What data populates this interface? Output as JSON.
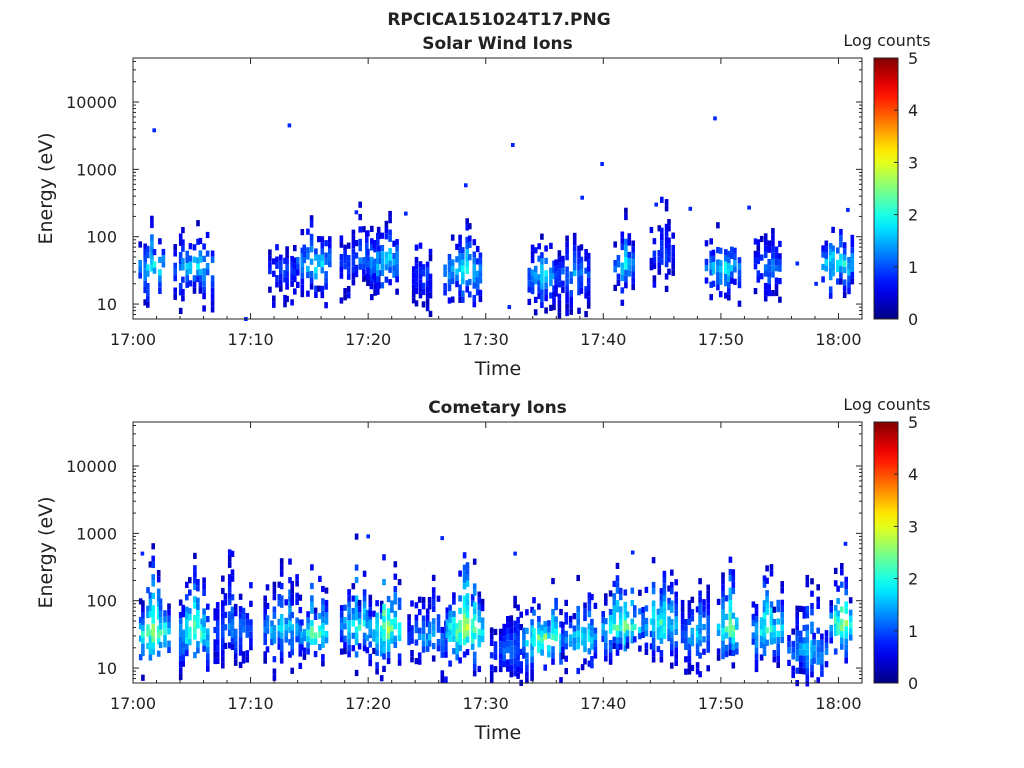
{
  "figure": {
    "title": "RPCICA151024T17.PNG"
  },
  "chart_data": [
    {
      "type": "heatmap",
      "title": "Solar Wind Ions",
      "xlabel": "Time",
      "ylabel": "Energy (eV)",
      "xlim": [
        "17:00",
        "18:02"
      ],
      "ylim": [
        6,
        45000
      ],
      "y_scale": "log",
      "x_ticks": [
        "17:00",
        "17:10",
        "17:20",
        "17:30",
        "17:40",
        "17:50",
        "18:00"
      ],
      "y_ticks": [
        "10",
        "100",
        "1000",
        "10000"
      ],
      "colorbar": {
        "label": "Log counts",
        "range": [
          0,
          5
        ],
        "ticks": [
          "0",
          "1",
          "2",
          "3",
          "4",
          "5"
        ],
        "colormap": "jet"
      },
      "bursts": [
        {
          "t": 1.6,
          "e": 40,
          "peak": 2.2
        },
        {
          "t": 5.2,
          "e": 40,
          "peak": 1.9
        },
        {
          "t": 12.7,
          "e": 35,
          "peak": 1.2
        },
        {
          "t": 15.4,
          "e": 45,
          "peak": 2.0
        },
        {
          "t": 19.3,
          "e": 50,
          "peak": 1.4
        },
        {
          "t": 21.2,
          "e": 50,
          "peak": 2.0
        },
        {
          "t": 24.6,
          "e": 30,
          "peak": 1.1
        },
        {
          "t": 28.1,
          "e": 35,
          "peak": 2.1
        },
        {
          "t": 34.7,
          "e": 30,
          "peak": 1.9
        },
        {
          "t": 37.4,
          "e": 30,
          "peak": 1.5
        },
        {
          "t": 41.7,
          "e": 40,
          "peak": 1.9
        },
        {
          "t": 45.0,
          "e": 60,
          "peak": 1.1
        },
        {
          "t": 50.2,
          "e": 40,
          "peak": 2.0
        },
        {
          "t": 54.0,
          "e": 40,
          "peak": 1.4
        },
        {
          "t": 59.9,
          "e": 45,
          "peak": 2.3
        }
      ],
      "sparse_points": [
        {
          "t": 1.8,
          "e": 3800,
          "v": 0.8
        },
        {
          "t": 13.3,
          "e": 4500,
          "v": 0.8
        },
        {
          "t": 32.3,
          "e": 2300,
          "v": 0.8
        },
        {
          "t": 39.9,
          "e": 1200,
          "v": 0.8
        },
        {
          "t": 49.5,
          "e": 5700,
          "v": 0.8
        },
        {
          "t": 28.3,
          "e": 580,
          "v": 0.8
        },
        {
          "t": 38.2,
          "e": 380,
          "v": 0.8
        },
        {
          "t": 19.0,
          "e": 230,
          "v": 0.8
        },
        {
          "t": 23.2,
          "e": 220,
          "v": 0.8
        },
        {
          "t": 44.5,
          "e": 300,
          "v": 0.8
        },
        {
          "t": 47.4,
          "e": 260,
          "v": 0.8
        },
        {
          "t": 52.4,
          "e": 270,
          "v": 0.8
        },
        {
          "t": 60.8,
          "e": 250,
          "v": 0.8
        },
        {
          "t": 9.6,
          "e": 6,
          "v": 0.8
        },
        {
          "t": 32.0,
          "e": 9,
          "v": 0.8
        },
        {
          "t": 56.5,
          "e": 40,
          "v": 0.8
        },
        {
          "t": 58.1,
          "e": 20,
          "v": 0.8
        }
      ]
    },
    {
      "type": "heatmap",
      "title": "Cometary Ions",
      "xlabel": "Time",
      "ylabel": "Energy (eV)",
      "xlim": [
        "17:00",
        "18:02"
      ],
      "ylim": [
        6,
        45000
      ],
      "y_scale": "log",
      "x_ticks": [
        "17:00",
        "17:10",
        "17:20",
        "17:30",
        "17:40",
        "17:50",
        "18:00"
      ],
      "y_ticks": [
        "10",
        "100",
        "1000",
        "10000"
      ],
      "colorbar": {
        "label": "Log counts",
        "range": [
          0,
          5
        ],
        "ticks": [
          "0",
          "1",
          "2",
          "3",
          "4",
          "5"
        ],
        "colormap": "jet"
      },
      "bursts": [
        {
          "t": 1.8,
          "e": 35,
          "peak": 2.8
        },
        {
          "t": 5.2,
          "e": 35,
          "peak": 2.6
        },
        {
          "t": 8.5,
          "e": 40,
          "peak": 1.5
        },
        {
          "t": 12.7,
          "e": 40,
          "peak": 2.0
        },
        {
          "t": 15.4,
          "e": 35,
          "peak": 2.6
        },
        {
          "t": 19.0,
          "e": 45,
          "peak": 2.3
        },
        {
          "t": 21.4,
          "e": 40,
          "peak": 2.8
        },
        {
          "t": 25.0,
          "e": 30,
          "peak": 1.6
        },
        {
          "t": 28.2,
          "e": 40,
          "peak": 3.0
        },
        {
          "t": 31.8,
          "e": 20,
          "peak": 1.4
        },
        {
          "t": 34.8,
          "e": 30,
          "peak": 2.7
        },
        {
          "t": 38.0,
          "e": 30,
          "peak": 2.1
        },
        {
          "t": 41.5,
          "e": 45,
          "peak": 2.6
        },
        {
          "t": 44.8,
          "e": 50,
          "peak": 2.3
        },
        {
          "t": 47.8,
          "e": 35,
          "peak": 1.8
        },
        {
          "t": 50.6,
          "e": 40,
          "peak": 2.6
        },
        {
          "t": 54.0,
          "e": 40,
          "peak": 2.4
        },
        {
          "t": 57.4,
          "e": 20,
          "peak": 1.8
        },
        {
          "t": 60.2,
          "e": 50,
          "peak": 2.9
        }
      ],
      "sparse_points": [
        {
          "t": 20.0,
          "e": 900,
          "v": 0.8
        },
        {
          "t": 26.3,
          "e": 850,
          "v": 0.8
        },
        {
          "t": 0.8,
          "e": 500,
          "v": 0.8
        },
        {
          "t": 32.5,
          "e": 500,
          "v": 0.8
        },
        {
          "t": 42.5,
          "e": 520,
          "v": 0.8
        },
        {
          "t": 60.6,
          "e": 700,
          "v": 0.8
        }
      ]
    }
  ]
}
